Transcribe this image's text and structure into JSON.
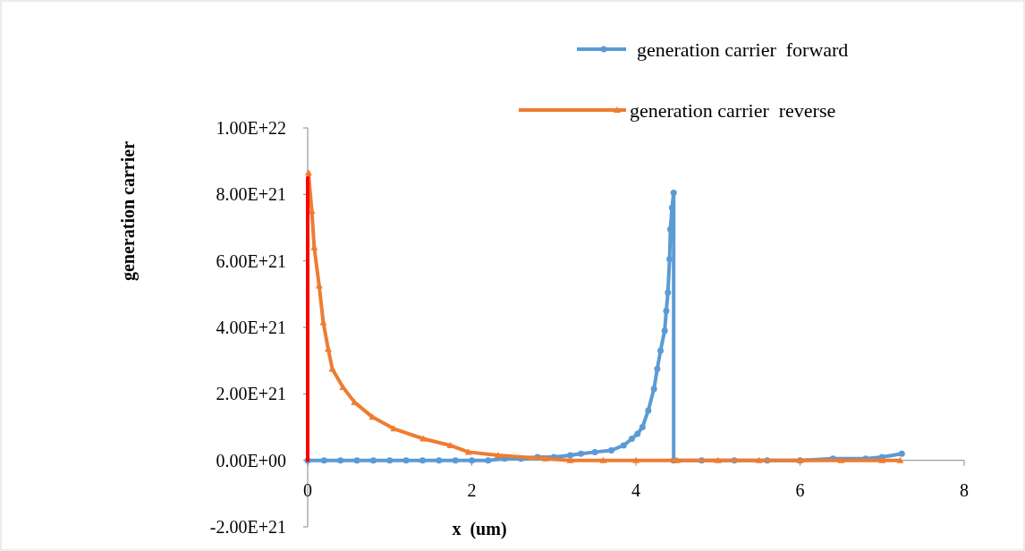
{
  "chart_data": {
    "type": "line",
    "xlabel": "x  (um)",
    "ylabel": "generation carrier",
    "xlim": [
      0,
      8
    ],
    "xticks": [
      0,
      2,
      4,
      6,
      8
    ],
    "ylim": [
      -2e+21,
      1e+22
    ],
    "yticks": [
      {
        "value": -2e+21,
        "label": "-2.00E+21"
      },
      {
        "value": 0,
        "label": "0.00E+00"
      },
      {
        "value": 2e+21,
        "label": "2.00E+21"
      },
      {
        "value": 4e+21,
        "label": "4.00E+21"
      },
      {
        "value": 6e+21,
        "label": "6.00E+21"
      },
      {
        "value": 8e+21,
        "label": "8.00E+21"
      },
      {
        "value": 1e+22,
        "label": "1.00E+22"
      }
    ],
    "grid": false,
    "legend": "top right",
    "line_style": "solid",
    "series": [
      {
        "name": "generation carrier  forward",
        "color": "#5b9bd5",
        "marker": "circle",
        "x": [
          0,
          0.2,
          0.4,
          0.6,
          0.8,
          1.0,
          1.2,
          1.4,
          1.6,
          1.8,
          2.0,
          2.2,
          2.4,
          2.6,
          2.8,
          3.0,
          3.2,
          3.33,
          3.5,
          3.7,
          3.85,
          3.95,
          4.02,
          4.08,
          4.15,
          4.22,
          4.26,
          4.3,
          4.35,
          4.37,
          4.39,
          4.41,
          4.42,
          4.44,
          4.46,
          4.46,
          4.8,
          5.2,
          5.6,
          6.0,
          6.4,
          6.8,
          7.0,
          7.24
        ],
        "values": [
          0,
          0,
          0,
          0,
          0,
          0,
          0,
          0,
          0,
          0,
          0,
          0,
          5e+19,
          5e+19,
          1e+20,
          1e+20,
          1.5e+20,
          2e+20,
          2.5e+20,
          3e+20,
          4.5e+20,
          6.5e+20,
          8e+20,
          1e+21,
          1.5e+21,
          2.15e+21,
          2.75e+21,
          3.3e+21,
          3.9e+21,
          4.5e+21,
          5.05e+21,
          6.05e+21,
          6.95e+21,
          7.6e+21,
          8.05e+21,
          0,
          0,
          0,
          0,
          0,
          5e+19,
          5e+19,
          1e+20,
          2e+20
        ]
      },
      {
        "name": "generation carrier  reverse",
        "color": "#ed7d31",
        "marker": "triangle",
        "x": [
          0.01,
          0.05,
          0.08,
          0.14,
          0.19,
          0.25,
          0.3,
          0.43,
          0.57,
          0.79,
          1.05,
          1.41,
          1.74,
          1.96,
          2.32,
          2.9,
          3.2,
          3.6,
          4.0,
          4.5,
          5.0,
          5.5,
          6.0,
          6.5,
          7.0,
          7.22
        ],
        "values": [
          8.65e+21,
          7.5e+21,
          6.4e+21,
          5.25e+21,
          4.15e+21,
          3.35e+21,
          2.75e+21,
          2.2e+21,
          1.75e+21,
          1.3e+21,
          9.5e+20,
          6.5e+20,
          4.5e+20,
          2.5e+20,
          1.5e+20,
          5e+19,
          0,
          0,
          0,
          0,
          0,
          0,
          0,
          0,
          0,
          0
        ]
      },
      {
        "color": "#ff0000",
        "marker": "none",
        "x": [
          0,
          0,
          0,
          0
        ],
        "values": [
          0,
          2e+21,
          4e+21,
          8.5e+21
        ]
      }
    ]
  }
}
